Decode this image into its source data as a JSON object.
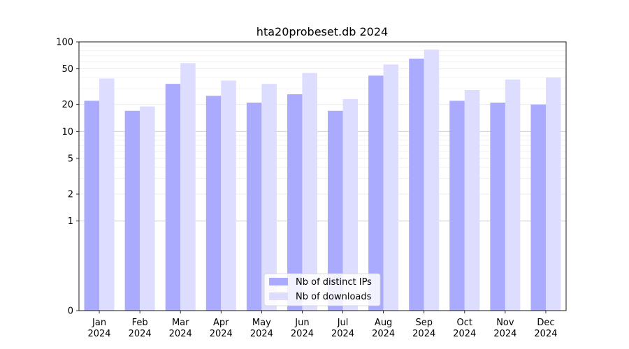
{
  "chart_data": {
    "type": "bar",
    "title": "hta20probeset.db 2024",
    "xlabel": "",
    "ylabel": "",
    "y_scale": "symlog",
    "ylim": [
      0,
      100
    ],
    "y_ticks": [
      0,
      1,
      2,
      5,
      10,
      20,
      50,
      100
    ],
    "categories": [
      [
        "Jan",
        "2024"
      ],
      [
        "Feb",
        "2024"
      ],
      [
        "Mar",
        "2024"
      ],
      [
        "Apr",
        "2024"
      ],
      [
        "May",
        "2024"
      ],
      [
        "Jun",
        "2024"
      ],
      [
        "Jul",
        "2024"
      ],
      [
        "Aug",
        "2024"
      ],
      [
        "Sep",
        "2024"
      ],
      [
        "Oct",
        "2024"
      ],
      [
        "Nov",
        "2024"
      ],
      [
        "Dec",
        "2024"
      ]
    ],
    "series": [
      {
        "name": "Nb of distinct IPs",
        "color": "#aaaaff",
        "values": [
          22,
          17,
          34,
          25,
          21,
          26,
          17,
          42,
          65,
          22,
          21,
          20
        ]
      },
      {
        "name": "Nb of downloads",
        "color": "#ddddff",
        "values": [
          39,
          19,
          58,
          37,
          34,
          45,
          23,
          56,
          82,
          29,
          38,
          40
        ]
      }
    ],
    "grid": true,
    "legend_position": "bottom-center"
  }
}
